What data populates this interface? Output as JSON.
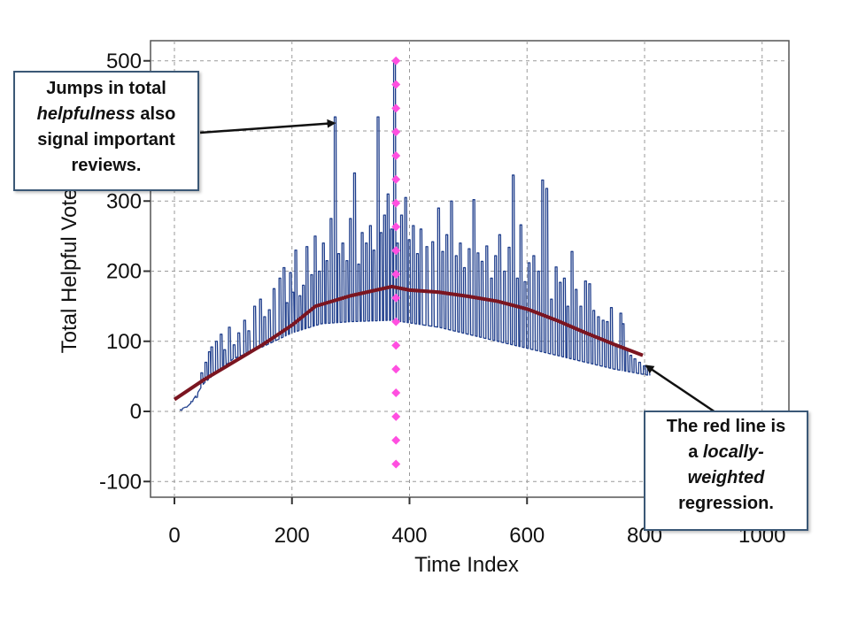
{
  "chart_data": {
    "type": "line",
    "xlabel": "Time Index",
    "ylabel": "Total Helpful Votes",
    "xlim": [
      -40,
      1040
    ],
    "ylim": [
      -130,
      530
    ],
    "xticks": [
      0,
      200,
      400,
      600,
      800,
      1000
    ],
    "yticks": [
      -100,
      0,
      100,
      200,
      300,
      400,
      500
    ],
    "grid": true,
    "series": [
      {
        "kind": "raw-votes",
        "color": "#1f3e8c",
        "baseline": [
          [
            0,
            0
          ],
          [
            25,
            8
          ],
          [
            50,
            40
          ],
          [
            100,
            75
          ],
          [
            150,
            92
          ],
          [
            200,
            112
          ],
          [
            250,
            125
          ],
          [
            300,
            128
          ],
          [
            370,
            130
          ],
          [
            450,
            120
          ],
          [
            550,
            100
          ],
          [
            650,
            80
          ],
          [
            750,
            60
          ],
          [
            850,
            45
          ]
        ],
        "spikes": [
          [
            10,
            2
          ],
          [
            18,
            6
          ],
          [
            28,
            14
          ],
          [
            36,
            20
          ],
          [
            45,
            55
          ],
          [
            52,
            70
          ],
          [
            58,
            85
          ],
          [
            62,
            92
          ],
          [
            70,
            100
          ],
          [
            78,
            110
          ],
          [
            84,
            88
          ],
          [
            92,
            120
          ],
          [
            100,
            95
          ],
          [
            108,
            112
          ],
          [
            118,
            130
          ],
          [
            125,
            115
          ],
          [
            135,
            150
          ],
          [
            145,
            160
          ],
          [
            152,
            135
          ],
          [
            160,
            145
          ],
          [
            168,
            175
          ],
          [
            178,
            190
          ],
          [
            185,
            205
          ],
          [
            190,
            155
          ],
          [
            196,
            198
          ],
          [
            200,
            170
          ],
          [
            205,
            230
          ],
          [
            212,
            165
          ],
          [
            218,
            180
          ],
          [
            224,
            235
          ],
          [
            232,
            195
          ],
          [
            238,
            250
          ],
          [
            245,
            200
          ],
          [
            252,
            240
          ],
          [
            258,
            215
          ],
          [
            265,
            275
          ],
          [
            272,
            420
          ],
          [
            278,
            225
          ],
          [
            285,
            240
          ],
          [
            292,
            215
          ],
          [
            298,
            275
          ],
          [
            305,
            340
          ],
          [
            312,
            210
          ],
          [
            318,
            255
          ],
          [
            325,
            240
          ],
          [
            332,
            265
          ],
          [
            338,
            230
          ],
          [
            345,
            420
          ],
          [
            350,
            255
          ],
          [
            356,
            280
          ],
          [
            362,
            310
          ],
          [
            368,
            260
          ],
          [
            373,
            500
          ],
          [
            378,
            240
          ],
          [
            385,
            280
          ],
          [
            392,
            305
          ],
          [
            398,
            245
          ],
          [
            405,
            265
          ],
          [
            412,
            225
          ],
          [
            418,
            260
          ],
          [
            428,
            235
          ],
          [
            438,
            242
          ],
          [
            448,
            290
          ],
          [
            455,
            228
          ],
          [
            462,
            252
          ],
          [
            470,
            300
          ],
          [
            478,
            222
          ],
          [
            485,
            240
          ],
          [
            492,
            205
          ],
          [
            500,
            232
          ],
          [
            508,
            302
          ],
          [
            515,
            226
          ],
          [
            522,
            214
          ],
          [
            530,
            236
          ],
          [
            538,
            190
          ],
          [
            545,
            222
          ],
          [
            552,
            252
          ],
          [
            560,
            200
          ],
          [
            568,
            234
          ],
          [
            575,
            337
          ],
          [
            582,
            190
          ],
          [
            588,
            266
          ],
          [
            595,
            185
          ],
          [
            602,
            212
          ],
          [
            610,
            222
          ],
          [
            618,
            200
          ],
          [
            625,
            330
          ],
          [
            632,
            318
          ],
          [
            640,
            160
          ],
          [
            648,
            206
          ],
          [
            655,
            184
          ],
          [
            662,
            190
          ],
          [
            668,
            150
          ],
          [
            675,
            228
          ],
          [
            682,
            174
          ],
          [
            690,
            150
          ],
          [
            698,
            186
          ],
          [
            705,
            182
          ],
          [
            712,
            144
          ],
          [
            720,
            135
          ],
          [
            728,
            130
          ],
          [
            735,
            128
          ],
          [
            742,
            148
          ],
          [
            750,
            96
          ],
          [
            758,
            140
          ],
          [
            762,
            125
          ],
          [
            768,
            88
          ],
          [
            775,
            80
          ],
          [
            782,
            75
          ],
          [
            790,
            70
          ],
          [
            798,
            65
          ],
          [
            805,
            60
          ]
        ]
      },
      {
        "kind": "loess",
        "color": "#7b1520",
        "points": [
          [
            0,
            17
          ],
          [
            50,
            45
          ],
          [
            100,
            70
          ],
          [
            150,
            95
          ],
          [
            200,
            123
          ],
          [
            240,
            150
          ],
          [
            300,
            165
          ],
          [
            370,
            178
          ],
          [
            400,
            173
          ],
          [
            450,
            170
          ],
          [
            500,
            164
          ],
          [
            550,
            157
          ],
          [
            600,
            146
          ],
          [
            650,
            130
          ],
          [
            700,
            112
          ],
          [
            750,
            95
          ],
          [
            797,
            80
          ]
        ]
      },
      {
        "kind": "vertical-marker",
        "color": "#ff4fe0",
        "x": 377,
        "ymin": -75,
        "ymax": 500,
        "count": 18
      }
    ],
    "annotations": [
      {
        "id": "left",
        "lines": [
          [
            {
              "text": "Jumps in total"
            }
          ],
          [
            {
              "text": "helpfulness",
              "italic": true
            },
            {
              "text": " also"
            }
          ],
          [
            {
              "text": "signal important"
            }
          ],
          [
            {
              "text": "reviews."
            }
          ]
        ],
        "arrow_to": [
          275,
          415
        ]
      },
      {
        "id": "right",
        "lines": [
          [
            {
              "text": "The red line is"
            }
          ],
          [
            {
              "text": "a "
            },
            {
              "text": "locally-",
              "italic": true
            }
          ],
          [
            {
              "text": "weighted",
              "italic": true
            }
          ],
          [
            {
              "text": "regression."
            }
          ]
        ],
        "arrow_to": [
          800,
          70
        ]
      }
    ]
  }
}
